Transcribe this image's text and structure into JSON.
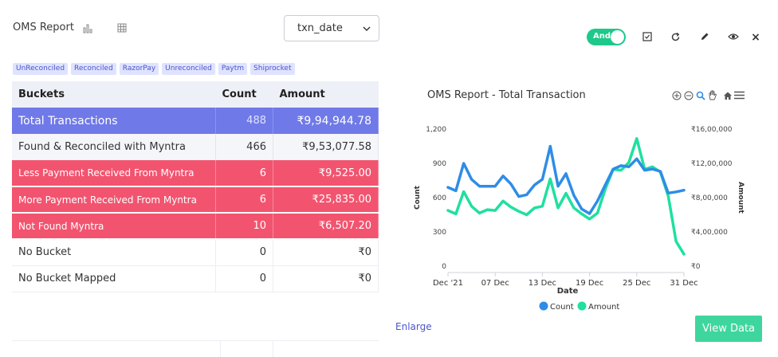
{
  "header": {
    "title": "OMS Report",
    "chart_view_icon": "bar-chart-icon",
    "table_view_icon": "grid-table-icon",
    "date_field_select": "txn_date"
  },
  "filters": {
    "tags": [
      "UnReconciled",
      "Reconciled",
      "RazorPay",
      "Unreconciled",
      "Paytm",
      "Shiprocket"
    ]
  },
  "toolbar": {
    "logic_toggle_label": "And",
    "logic_toggle_on": true,
    "icons": [
      "checkbox-icon",
      "refresh-icon",
      "pencil-icon",
      "eye-icon",
      "close-icon"
    ],
    "close_label": "×"
  },
  "table": {
    "headers": [
      "Buckets",
      "Count",
      "Amount"
    ],
    "rows": [
      {
        "bucket": "Total  Transactions",
        "count": "488",
        "amount": "₹9,94,944.78",
        "style": "total"
      },
      {
        "bucket": "Found & Reconciled with Myntra",
        "count": "466",
        "amount": "₹9,53,077.58",
        "style": "grey"
      },
      {
        "bucket": "Less Payment Received From Myntra",
        "count": "6",
        "amount": "₹9,525.00",
        "style": "red"
      },
      {
        "bucket": "More Payment Received From Myntra",
        "count": "6",
        "amount": "₹25,835.00",
        "style": "red"
      },
      {
        "bucket": "Not Found Myntra",
        "count": "10",
        "amount": "₹6,507.20",
        "style": "red"
      },
      {
        "bucket": "No Bucket",
        "count": "0",
        "amount": "₹0",
        "style": "plain"
      },
      {
        "bucket": "No Bucket Mapped",
        "count": "0",
        "amount": "₹0",
        "style": "plain"
      }
    ],
    "colors": {
      "total": "#6f79e8",
      "red": "#f2546f",
      "grey": "#f5f6fa"
    }
  },
  "chart": {
    "title": "OMS Report - Total Transaction",
    "tool_icons": [
      "zoom-in-icon",
      "zoom-out-icon",
      "magnifier-icon",
      "pan-hand-icon",
      "home-icon",
      "menu-icon"
    ]
  },
  "chart_data": {
    "type": "line",
    "title": "OMS Report - Total Transaction",
    "xlabel": "Date",
    "ylabel": "Count",
    "y2label": "Amount",
    "x_ticks": [
      "Dec '21",
      "07 Dec",
      "13 Dec",
      "19 Dec",
      "25 Dec",
      "31 Dec"
    ],
    "y_ticks": [
      "0",
      "300",
      "600",
      "900",
      "1,200"
    ],
    "y2_ticks": [
      "₹0",
      "₹4,00,000",
      "₹8,00,000",
      "₹12,00,000",
      "₹16,00,000"
    ],
    "ylim": [
      0,
      1200
    ],
    "y2lim": [
      0,
      1600000
    ],
    "x": [
      "2021-12-01",
      "2021-12-02",
      "2021-12-03",
      "2021-12-04",
      "2021-12-05",
      "2021-12-06",
      "2021-12-07",
      "2021-12-08",
      "2021-12-09",
      "2021-12-10",
      "2021-12-11",
      "2021-12-12",
      "2021-12-13",
      "2021-12-14",
      "2021-12-15",
      "2021-12-16",
      "2021-12-17",
      "2021-12-18",
      "2021-12-19",
      "2021-12-20",
      "2021-12-21",
      "2021-12-22",
      "2021-12-23",
      "2021-12-24",
      "2021-12-25",
      "2021-12-26",
      "2021-12-27",
      "2021-12-28",
      "2021-12-29",
      "2021-12-30",
      "2021-12-31"
    ],
    "series": [
      {
        "name": "Count",
        "axis": "left",
        "color": "#2e8de6",
        "values": [
          690,
          660,
          900,
          760,
          700,
          700,
          700,
          790,
          720,
          610,
          625,
          710,
          760,
          1050,
          700,
          810,
          620,
          500,
          460,
          570,
          710,
          850,
          880,
          870,
          940,
          840,
          850,
          830,
          640,
          650,
          665
        ]
      },
      {
        "name": "Amount",
        "axis": "right",
        "color": "#1fe0a0",
        "values": [
          650000,
          610000,
          870000,
          700000,
          620000,
          660000,
          650000,
          760000,
          690000,
          640000,
          600000,
          680000,
          700000,
          1020000,
          680000,
          850000,
          680000,
          610000,
          550000,
          620000,
          900000,
          1130000,
          1120000,
          1210000,
          1490000,
          1130000,
          1160000,
          1100000,
          820000,
          290000,
          140000
        ]
      }
    ],
    "legend": [
      "Count",
      "Amount"
    ],
    "legend_position": "bottom",
    "grid": false
  },
  "actions": {
    "enlarge": "Enlarge",
    "view_data": "View Data"
  }
}
